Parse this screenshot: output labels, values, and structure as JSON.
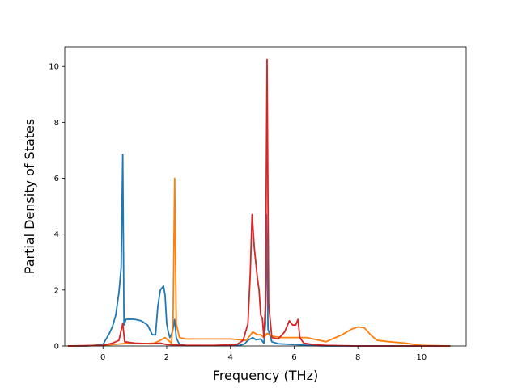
{
  "chart_data": {
    "type": "line",
    "title": "",
    "xlabel": "Frequency (THz)",
    "ylabel": "Partial Density of States",
    "xlim": [
      -1.2,
      11.4
    ],
    "ylim": [
      0,
      10.7
    ],
    "xticks": [
      0,
      2,
      4,
      6,
      8,
      10
    ],
    "yticks": [
      0,
      2,
      4,
      6,
      8,
      10
    ],
    "grid": false,
    "legend": "none",
    "series": [
      {
        "color": "#1f77b4",
        "points": [
          [
            -1.1,
            0
          ],
          [
            -0.5,
            0
          ],
          [
            0,
            0.05
          ],
          [
            0.1,
            0.25
          ],
          [
            0.2,
            0.45
          ],
          [
            0.3,
            0.7
          ],
          [
            0.4,
            1.1
          ],
          [
            0.5,
            1.9
          ],
          [
            0.57,
            2.8
          ],
          [
            0.62,
            6.85
          ],
          [
            0.66,
            0.75
          ],
          [
            0.72,
            0.95
          ],
          [
            0.85,
            0.96
          ],
          [
            1.0,
            0.95
          ],
          [
            1.2,
            0.9
          ],
          [
            1.4,
            0.75
          ],
          [
            1.55,
            0.4
          ],
          [
            1.65,
            0.4
          ],
          [
            1.72,
            1.4
          ],
          [
            1.8,
            2.0
          ],
          [
            1.9,
            2.15
          ],
          [
            1.95,
            1.8
          ],
          [
            2.0,
            0.8
          ],
          [
            2.05,
            0.5
          ],
          [
            2.1,
            0.3
          ],
          [
            2.18,
            0.5
          ],
          [
            2.25,
            0.95
          ],
          [
            2.3,
            0.3
          ],
          [
            2.4,
            0.05
          ],
          [
            2.6,
            0.02
          ],
          [
            3.5,
            0.01
          ],
          [
            4.3,
            0.02
          ],
          [
            4.45,
            0.08
          ],
          [
            4.55,
            0.2
          ],
          [
            4.7,
            0.3
          ],
          [
            4.8,
            0.22
          ],
          [
            4.95,
            0.25
          ],
          [
            5.05,
            0.1
          ],
          [
            5.1,
            0.8
          ],
          [
            5.13,
            4.7
          ],
          [
            5.18,
            0.6
          ],
          [
            5.3,
            0.15
          ],
          [
            5.5,
            0.08
          ],
          [
            6.0,
            0.05
          ],
          [
            6.5,
            0.02
          ],
          [
            7,
            0
          ],
          [
            10.9,
            0
          ]
        ]
      },
      {
        "color": "#ff7f0e",
        "points": [
          [
            -1.1,
            0
          ],
          [
            0,
            0.02
          ],
          [
            0.3,
            0.05
          ],
          [
            0.6,
            0.08
          ],
          [
            0.8,
            0.1
          ],
          [
            1.2,
            0.08
          ],
          [
            1.6,
            0.1
          ],
          [
            1.8,
            0.2
          ],
          [
            1.95,
            0.3
          ],
          [
            2.05,
            0.2
          ],
          [
            2.15,
            0.1
          ],
          [
            2.2,
            1.0
          ],
          [
            2.25,
            6.0
          ],
          [
            2.3,
            0.8
          ],
          [
            2.4,
            0.3
          ],
          [
            2.6,
            0.25
          ],
          [
            3.0,
            0.25
          ],
          [
            4.0,
            0.25
          ],
          [
            4.3,
            0.22
          ],
          [
            4.5,
            0.2
          ],
          [
            4.6,
            0.35
          ],
          [
            4.7,
            0.5
          ],
          [
            4.85,
            0.4
          ],
          [
            4.95,
            0.4
          ],
          [
            5.05,
            0.3
          ],
          [
            5.15,
            0.45
          ],
          [
            5.3,
            0.35
          ],
          [
            5.6,
            0.3
          ],
          [
            6.0,
            0.3
          ],
          [
            6.4,
            0.3
          ],
          [
            6.8,
            0.2
          ],
          [
            7.0,
            0.15
          ],
          [
            7.2,
            0.25
          ],
          [
            7.5,
            0.4
          ],
          [
            7.8,
            0.6
          ],
          [
            8.0,
            0.68
          ],
          [
            8.2,
            0.65
          ],
          [
            8.4,
            0.4
          ],
          [
            8.6,
            0.2
          ],
          [
            9.0,
            0.15
          ],
          [
            9.5,
            0.1
          ],
          [
            9.8,
            0.05
          ],
          [
            10.0,
            0.02
          ],
          [
            10.9,
            0
          ]
        ]
      },
      {
        "color": "#d62728",
        "points": [
          [
            -1.1,
            0
          ],
          [
            0,
            0.02
          ],
          [
            0.3,
            0.1
          ],
          [
            0.5,
            0.2
          ],
          [
            0.62,
            0.8
          ],
          [
            0.68,
            0.15
          ],
          [
            1.0,
            0.1
          ],
          [
            1.5,
            0.08
          ],
          [
            1.8,
            0.1
          ],
          [
            2.0,
            0.05
          ],
          [
            2.5,
            0.02
          ],
          [
            3.5,
            0.02
          ],
          [
            4.2,
            0.05
          ],
          [
            4.4,
            0.2
          ],
          [
            4.55,
            0.8
          ],
          [
            4.62,
            2.5
          ],
          [
            4.68,
            4.7
          ],
          [
            4.75,
            3.5
          ],
          [
            4.85,
            2.4
          ],
          [
            4.9,
            2.0
          ],
          [
            4.95,
            1.1
          ],
          [
            5.0,
            1.0
          ],
          [
            5.05,
            0.3
          ],
          [
            5.1,
            1.5
          ],
          [
            5.15,
            10.25
          ],
          [
            5.2,
            1.5
          ],
          [
            5.3,
            0.3
          ],
          [
            5.5,
            0.25
          ],
          [
            5.7,
            0.5
          ],
          [
            5.85,
            0.9
          ],
          [
            5.95,
            0.75
          ],
          [
            6.05,
            0.75
          ],
          [
            6.12,
            0.95
          ],
          [
            6.18,
            0.3
          ],
          [
            6.3,
            0.1
          ],
          [
            6.6,
            0.05
          ],
          [
            7,
            0.02
          ],
          [
            8,
            0
          ],
          [
            10.9,
            0
          ]
        ]
      }
    ]
  }
}
